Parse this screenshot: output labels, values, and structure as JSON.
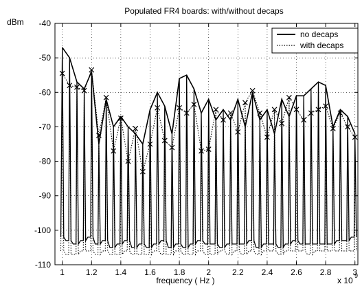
{
  "chart_data": {
    "type": "line",
    "title": "Populated FR4 boards: with/without decaps",
    "xlabel": "frequency ( Hz )",
    "ylabel": "dBm",
    "x_multiplier_label": "x 10",
    "x_multiplier_exp": "9",
    "xlim": [
      0.95,
      3.02
    ],
    "ylim": [
      -110,
      -40
    ],
    "grid": true,
    "legend_position": "top-right",
    "x_ticks": [
      1,
      1.2,
      1.4,
      1.6,
      1.8,
      2,
      2.2,
      2.4,
      2.6,
      2.8,
      3
    ],
    "x_tick_labels": [
      "1",
      "1.2",
      "1.4",
      "1.6",
      "1.8",
      "2",
      "2.2",
      "2.4",
      "2.6",
      "2.8",
      "3"
    ],
    "y_ticks": [
      -40,
      -50,
      -60,
      -70,
      -80,
      -90,
      -100,
      -110
    ],
    "y_tick_labels": [
      "-40",
      "-50",
      "-60",
      "-70",
      "-80",
      "-90",
      "-100",
      "-110"
    ],
    "x": [
      1.0,
      1.05,
      1.1,
      1.15,
      1.2,
      1.25,
      1.3,
      1.35,
      1.4,
      1.45,
      1.5,
      1.55,
      1.6,
      1.65,
      1.7,
      1.75,
      1.8,
      1.85,
      1.9,
      1.95,
      2.0,
      2.05,
      2.1,
      2.15,
      2.2,
      2.25,
      2.3,
      2.35,
      2.4,
      2.45,
      2.5,
      2.55,
      2.6,
      2.65,
      2.7,
      2.75,
      2.8,
      2.85,
      2.9,
      2.95,
      3.0
    ],
    "series": [
      {
        "name": "no decaps",
        "line_style": "solid",
        "marker": "none",
        "peaks": [
          -47,
          -50,
          -57,
          -59,
          -54,
          -75,
          -62,
          -70,
          -67,
          -70,
          -72,
          -75,
          -65,
          -60,
          -64,
          -72,
          -56,
          -55,
          -59,
          -66,
          -62,
          -68,
          -65,
          -68,
          -62,
          -70,
          -60,
          -68,
          -65,
          -72,
          -62,
          -67,
          -61,
          -61,
          -59,
          -57,
          -58,
          -70,
          -65,
          -67,
          -72
        ],
        "floor": [
          -102,
          -103,
          -104,
          -103,
          -102,
          -104,
          -103,
          -105,
          -104,
          -103,
          -105,
          -104,
          -105,
          -104,
          -103,
          -105,
          -104,
          -105,
          -104,
          -103,
          -104,
          -104,
          -105,
          -104,
          -104,
          -104,
          -103,
          -105,
          -104,
          -104,
          -105,
          -104,
          -103,
          -104,
          -104,
          -104,
          -104,
          -104,
          -103,
          -103,
          -102
        ]
      },
      {
        "name": "with decaps",
        "line_style": "dotted",
        "marker": "x",
        "peaks": [
          -54.5,
          -58,
          -58.5,
          -59.5,
          -53.5,
          -72.5,
          -61.5,
          -77,
          -67.5,
          -80,
          -70.5,
          -83,
          -75,
          -64.5,
          -74,
          -76,
          -64.5,
          -66,
          -63.5,
          -77,
          -76.5,
          -65,
          -68,
          -66,
          -71.5,
          -63,
          -59.5,
          -66,
          -73,
          -65,
          -69,
          -61.5,
          -65,
          -68,
          -66,
          -65,
          -64,
          -70.5,
          -66,
          -70,
          -73
        ],
        "floor": [
          -106,
          -107,
          -107,
          -106,
          -106,
          -107,
          -106,
          -107,
          -107,
          -106,
          -107,
          -107,
          -107,
          -106,
          -107,
          -107,
          -106,
          -107,
          -107,
          -106,
          -107,
          -107,
          -106,
          -107,
          -106,
          -107,
          -106,
          -107,
          -106,
          -106,
          -107,
          -106,
          -106,
          -106,
          -107,
          -106,
          -106,
          -106,
          -106,
          -106,
          -106
        ]
      }
    ]
  }
}
